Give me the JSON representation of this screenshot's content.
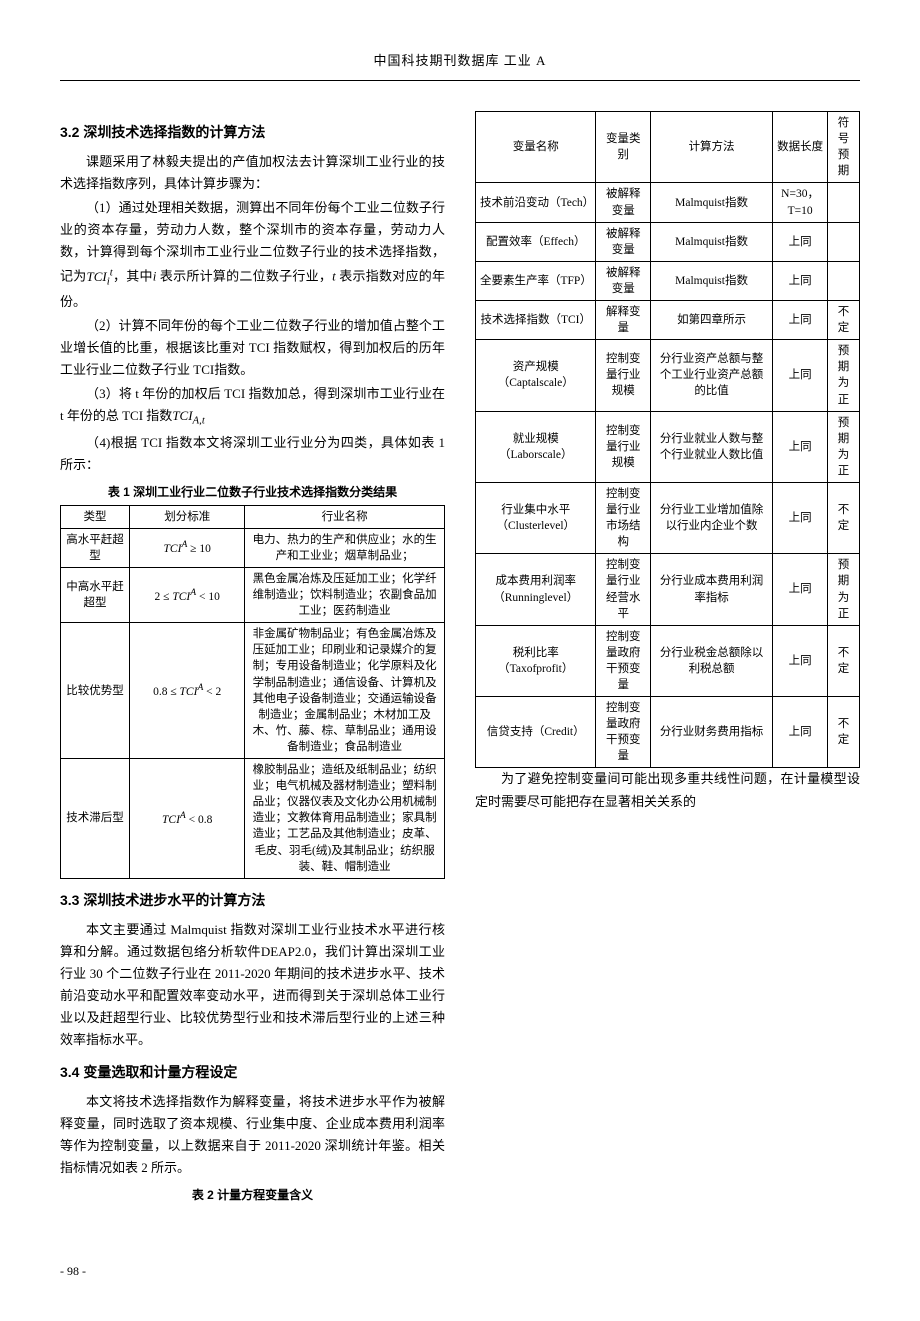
{
  "header": {
    "journal": "中国科技期刊数据库 工业 A"
  },
  "sections": {
    "s32": {
      "heading": "3.2 深圳技术选择指数的计算方法",
      "p1": "课题采用了林毅夫提出的产值加权法去计算深圳工业行业的技术选择指数序列，具体计算步骤为：",
      "p2": "（1）通过处理相关数据，测算出不同年份每个工业二位数子行业的资本存量，劳动力人数，整个深圳市的资本存量，劳动力人数，计算得到每个深圳市工业行业二位数子行业的技术选择指数，记为",
      "p2_formula": "TCI",
      "p2_sub": "i",
      "p2_sup": "t",
      "p2b": "，其中",
      "p3_i": "i",
      "p3a": " 表示所计算的二位数子行业，",
      "p3_t": "t",
      "p3b": " 表示指数对应的年份。",
      "p4": "（2）计算不同年份的每个工业二位数子行业的增加值占整个工业增长值的比重，根据该比重对 TCI 指数赋权，得到加权后的历年工业行业二位数子行业 TCI指数。",
      "p5": "（3）将 t 年份的加权后 TCI 指数加总，得到深圳市工业行业在 t 年份的总 TCI 指数",
      "p5_formula": "TCI",
      "p5_sub": "A,t",
      "p6": "（4)根据 TCI 指数本文将深圳工业行业分为四类，具体如表 1 所示："
    },
    "table1": {
      "caption": "表 1  深圳工业行业二位数子行业技术选择指数分类结果",
      "headers": [
        "类型",
        "划分标准",
        "行业名称"
      ],
      "rows": [
        {
          "type": "高水平赶超型",
          "criterion": "TCI",
          "criterion_sup": "A",
          "criterion_op": " ≥ 10",
          "industries": "电力、热力的生产和供应业；水的生产和工业业；烟草制品业；"
        },
        {
          "type": "中高水平赶超型",
          "criterion_pre": "2 ≤ ",
          "criterion": "TCI",
          "criterion_sup": "A",
          "criterion_op": " < 10",
          "industries": "黑色金属冶炼及压延加工业；化学纤维制造业；饮料制造业；农副食品加工业；医药制造业"
        },
        {
          "type": "比较优势型",
          "criterion_pre": "0.8 ≤ ",
          "criterion": "TCI",
          "criterion_sup": "A",
          "criterion_op": " < 2",
          "industries": "非金属矿物制品业；有色金属冶炼及压延加工业；印刷业和记录媒介的复制；专用设备制造业；化学原料及化学制品制造业；通信设备、计算机及其他电子设备制造业；交通运输设备制造业；金属制品业；木材加工及木、竹、藤、棕、草制品业；通用设备制造业；食品制造业"
        },
        {
          "type": "技术滞后型",
          "criterion": "TCI",
          "criterion_sup": "A",
          "criterion_op": " < 0.8",
          "industries": "橡胶制品业；造纸及纸制品业；纺织业；电气机械及器材制造业；塑料制品业；仪器仪表及文化办公用机械制造业；文教体育用品制造业；家具制造业；工艺品及其他制造业；皮革、毛皮、羽毛(绒)及其制品业；纺织服装、鞋、帽制造业"
        }
      ]
    },
    "s33": {
      "heading": "3.3 深圳技术进步水平的计算方法",
      "p1": "本文主要通过 Malmquist 指数对深圳工业行业技术水平进行核算和分解。通过数据包络分析软件DEAP2.0，我们计算出深圳工业行业 30 个二位数子行业在 2011-2020 年期间的技术进步水平、技术前沿变动水平和配置效率变动水平，进而得到关于深圳总体工业行业以及赶超型行业、比较优势型行业和技术滞后型行业的上述三种效率指标水平。"
    },
    "s34": {
      "heading": "3.4 变量选取和计量方程设定",
      "p1": "本文将技术选择指数作为解释变量，将技术进步水平作为被解释变量，同时选取了资本规模、行业集中度、企业成本费用利润率等作为控制变量，以上数据来自于 2011-2020 深圳统计年鉴。相关指标情况如表 2 所示。"
    },
    "table2": {
      "caption": "表 2  计量方程变量含义",
      "headers": [
        "变量名称",
        "变量类别",
        "计算方法",
        "数据长度",
        "符号预期"
      ],
      "rows": [
        {
          "name": "技术前沿变动（Tech）",
          "type": "被解释变量",
          "method": "Malmquist指数",
          "length": "N=30，T=10",
          "sign": ""
        },
        {
          "name": "配置效率（Effech）",
          "type": "被解释变量",
          "method": "Malmquist指数",
          "length": "上同",
          "sign": ""
        },
        {
          "name": "全要素生产率（TFP）",
          "type": "被解释变量",
          "method": "Malmquist指数",
          "length": "上同",
          "sign": ""
        },
        {
          "name": "技术选择指数（TCI）",
          "type": "解释变量",
          "method": "如第四章所示",
          "length": "上同",
          "sign": "不定"
        },
        {
          "name": "资产规模（Captalscale）",
          "type": "控制变量行业规模",
          "method": "分行业资产总额与整个工业行业资产总额的比值",
          "length": "上同",
          "sign": "预期为正"
        },
        {
          "name": "就业规模（Laborscale）",
          "type": "控制变量行业规模",
          "method": "分行业就业人数与整个行业就业人数比值",
          "length": "上同",
          "sign": "预期为正"
        },
        {
          "name": "行业集中水平（Clusterlevel）",
          "type": "控制变量行业市场结构",
          "method": "分行业工业增加值除以行业内企业个数",
          "length": "上同",
          "sign": "不定"
        },
        {
          "name": "成本费用利润率（Runninglevel）",
          "type": "控制变量行业经营水平",
          "method": "分行业成本费用利润率指标",
          "length": "上同",
          "sign": "预期为正"
        },
        {
          "name": "税利比率（Taxofprofit）",
          "type": "控制变量政府干预变量",
          "method": "分行业税金总额除以利税总额",
          "length": "上同",
          "sign": "不定"
        },
        {
          "name": "信贷支持（Credit）",
          "type": "控制变量政府干预变量",
          "method": "分行业财务费用指标",
          "length": "上同",
          "sign": "不定"
        }
      ]
    },
    "closing": {
      "p1": "为了避免控制变量间可能出现多重共线性问题，在计量模型设定时需要尽可能把存在显著相关关系的"
    }
  },
  "footer": {
    "page": "- 98 -"
  }
}
